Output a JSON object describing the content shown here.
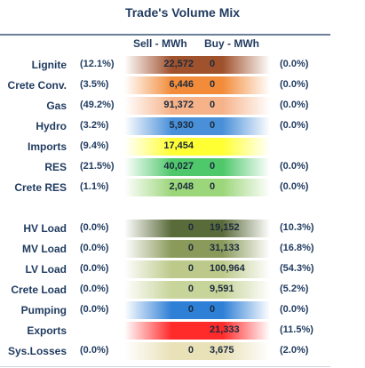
{
  "chart_data": {
    "type": "table",
    "title": "Trade's Volume Mix",
    "columns": {
      "sell": "Sell - MWh",
      "buy": "Buy - MWh"
    },
    "rows": [
      {
        "label": "Lignite",
        "sell_pct": "(12.1%)",
        "sell": "22,572",
        "buy": "0",
        "buy_pct": "(0.0%)",
        "sell_color": "#a0522d",
        "buy_color": "#a0522d"
      },
      {
        "label": "Crete Conv.",
        "sell_pct": "(3.5%)",
        "sell": "6,446",
        "buy": "0",
        "buy_pct": "(0.0%)",
        "sell_color": "#f28c3a",
        "buy_color": "#f28c3a"
      },
      {
        "label": "Gas",
        "sell_pct": "(49.2%)",
        "sell": "91,372",
        "buy": "0",
        "buy_pct": "(0.0%)",
        "sell_color": "#f6b38a",
        "buy_color": "#f6b38a"
      },
      {
        "label": "Hydro",
        "sell_pct": "(3.2%)",
        "sell": "5,930",
        "buy": "0",
        "buy_pct": "(0.0%)",
        "sell_color": "#4a90d9",
        "buy_color": "#4a90d9"
      },
      {
        "label": "Imports",
        "sell_pct": "(9.4%)",
        "sell": "17,454",
        "buy": "",
        "buy_pct": "",
        "sell_color": "#ffff33",
        "buy_color": "#ffff33"
      },
      {
        "label": "RES",
        "sell_pct": "(21.5%)",
        "sell": "40,027",
        "buy": "0",
        "buy_pct": "(0.0%)",
        "sell_color": "#4fc86b",
        "buy_color": "#4fc86b"
      },
      {
        "label": "Crete RES",
        "sell_pct": "(1.1%)",
        "sell": "2,048",
        "buy": "0",
        "buy_pct": "(0.0%)",
        "sell_color": "#9cd67a",
        "buy_color": "#9cd67a"
      },
      {
        "label": "HV Load",
        "sell_pct": "(0.0%)",
        "sell": "0",
        "buy": "19,152",
        "buy_pct": "(10.3%)",
        "sell_color": "#5a6b3a",
        "buy_color": "#5a6b3a"
      },
      {
        "label": "MV Load",
        "sell_pct": "(0.0%)",
        "sell": "0",
        "buy": "31,133",
        "buy_pct": "(16.8%)",
        "sell_color": "#8a9a5b",
        "buy_color": "#8a9a5b"
      },
      {
        "label": "LV Load",
        "sell_pct": "(0.0%)",
        "sell": "0",
        "buy": "100,964",
        "buy_pct": "(54.3%)",
        "sell_color": "#bcc98a",
        "buy_color": "#bcc98a"
      },
      {
        "label": "Crete Load",
        "sell_pct": "(0.0%)",
        "sell": "0",
        "buy": "9,591",
        "buy_pct": "(5.2%)",
        "sell_color": "#c7d49a",
        "buy_color": "#c7d49a"
      },
      {
        "label": "Pumping",
        "sell_pct": "(0.0%)",
        "sell": "0",
        "buy": "0",
        "buy_pct": "(0.0%)",
        "sell_color": "#2e7fd6",
        "buy_color": "#2e7fd6"
      },
      {
        "label": "Exports",
        "sell_pct": "",
        "sell": "",
        "buy": "21,333",
        "buy_pct": "(11.5%)",
        "sell_color": "#ff2a2a",
        "buy_color": "#ff2a2a"
      },
      {
        "label": "Sys.Losses",
        "sell_pct": "(0.0%)",
        "sell": "0",
        "buy": "3,675",
        "buy_pct": "(2.0%)",
        "sell_color": "#e9e1b8",
        "buy_color": "#e9e1b8"
      }
    ]
  }
}
